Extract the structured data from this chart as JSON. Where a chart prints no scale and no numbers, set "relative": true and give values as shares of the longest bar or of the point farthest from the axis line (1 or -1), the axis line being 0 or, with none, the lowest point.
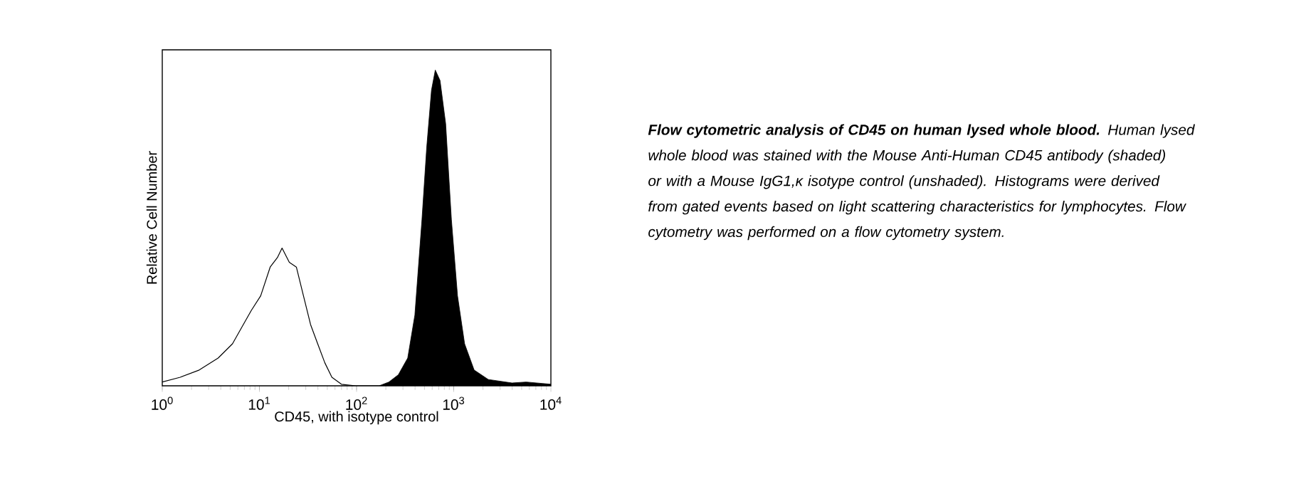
{
  "chart_data": {
    "type": "line",
    "relative": true,
    "log": "x",
    "xlabel": "CD45, with isotype control",
    "ylabel": "Relative Cell Number",
    "xlim": [
      1,
      10000
    ],
    "xticks": [
      {
        "value": 1,
        "label": "10$^{0}$"
      },
      {
        "value": 10,
        "label": "10$^{1}$"
      },
      {
        "value": 100,
        "label": "10$^{2}$"
      },
      {
        "value": 1000,
        "label": "10$^{3}$"
      },
      {
        "value": 10000,
        "label": "10$^{4}$"
      }
    ],
    "series": [
      {
        "color": "#000000",
        "x": [
          1,
          1.53,
          2.4,
          3.76,
          5.28,
          6.6,
          8.26,
          10.3,
          12.9,
          15.3,
          17.1,
          20.3,
          24.0,
          28.4,
          33.6,
          39.8,
          47.1,
          55.7,
          69.8,
          97.8,
          171
        ],
        "values": [
          0.012,
          0.027,
          0.05,
          0.088,
          0.133,
          0.186,
          0.239,
          0.285,
          0.376,
          0.406,
          0.436,
          0.391,
          0.376,
          0.285,
          0.194,
          0.133,
          0.073,
          0.027,
          0.005,
          0,
          0
        ]
      },
      {
        "type": "area",
        "color": "#000000",
        "x": [
          171,
          215,
          269,
          336,
          398,
          471,
          527,
          590,
          646,
          723,
          826,
          946,
          1094,
          1294,
          1622,
          2270,
          3981,
          5572,
          10000
        ],
        "values": [
          0,
          0.012,
          0.035,
          0.088,
          0.224,
          0.527,
          0.755,
          0.936,
          1,
          0.967,
          0.83,
          0.527,
          0.285,
          0.133,
          0.05,
          0.02,
          0.009,
          0.012,
          0.005
        ]
      }
    ],
    "annotations": [
      "**Flow cytometric analysis of CD45 on human lysed whole blood.**  Human lysed whole blood was stained with the Mouse Anti-Human CD45 antibody (shaded) or with a Mouse IgG1,κ isotype control (unshaded).  Histograms were derived from gated events based on light scattering characteristics for lymphocytes. Flow cytometry was performed on a flow cytometry system."
    ]
  }
}
